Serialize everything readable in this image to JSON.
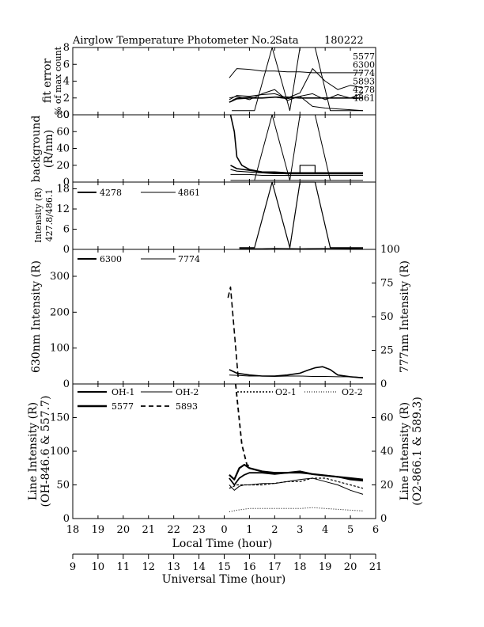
{
  "header": {
    "title": "Airglow Temperature Photometer No.2",
    "site": "Sata",
    "date": "180222"
  },
  "chart_data": [
    {
      "type": "line",
      "panel": "fit-error",
      "ylabel_1": "fit error",
      "ylabel_2": "% of max count",
      "ylim": [
        0,
        8
      ],
      "yticks": [
        "0",
        "2",
        "4",
        "6",
        "8"
      ],
      "labels": [
        "5577",
        "6300",
        "7774",
        "5893",
        "4278",
        "4861"
      ],
      "series": [
        {
          "name": "5577",
          "x": [
            0.2,
            0.5,
            1,
            1.5,
            2,
            2.5,
            3,
            3.5,
            4,
            4.5,
            5,
            5.5
          ],
          "y": [
            4.4,
            5.5,
            5.4,
            5.2,
            5.2,
            5.1,
            5.1,
            5.0,
            5.0,
            5.0,
            5.0,
            5.0
          ]
        },
        {
          "name": "6300",
          "x": [
            0.2,
            0.5,
            1,
            1.5,
            2,
            2.5,
            3,
            3.5,
            4,
            4.5,
            5,
            5.5
          ],
          "y": [
            1.5,
            1.9,
            2.0,
            2.0,
            2.1,
            2.1,
            2.0,
            2.0,
            2.0,
            2.0,
            2.0,
            2.0
          ]
        },
        {
          "name": "7774",
          "x": [
            0.2,
            0.5,
            1,
            1.5,
            2,
            2.5,
            3,
            3.5,
            4,
            4.5,
            5,
            5.5
          ],
          "y": [
            2.0,
            2.2,
            1.8,
            2.5,
            3.0,
            1.7,
            2.2,
            2.5,
            1.8,
            2.4,
            2.0,
            2.6
          ]
        },
        {
          "name": "5893",
          "x": [
            0.2,
            0.5,
            1,
            1.5,
            2,
            2.5,
            3,
            3.5,
            4,
            4.5,
            5,
            5.5
          ],
          "y": [
            1.8,
            2.3,
            2.2,
            2.4,
            2.5,
            2.0,
            2.6,
            5.5,
            4.0,
            3.0,
            3.5,
            3.2
          ]
        },
        {
          "name": "4278",
          "x": [
            0.3,
            1.2,
            1.9,
            2.6,
            3.0,
            3.6,
            4.2,
            5.5
          ],
          "y": [
            0.5,
            0.5,
            8,
            0.5,
            8,
            8,
            0.5,
            0.5
          ]
        },
        {
          "name": "4861",
          "x": [
            0.3,
            0.5,
            1,
            1.5,
            2,
            2.5,
            3,
            3.5,
            4,
            4.5,
            5,
            5.5
          ],
          "y": [
            1.7,
            2.0,
            2.1,
            2.0,
            2.1,
            1.9,
            2.2,
            1.0,
            0.8,
            0.7,
            0.6,
            0.5
          ]
        }
      ]
    },
    {
      "type": "line",
      "panel": "background",
      "ylabel_1": "background",
      "ylabel_2": "(R/nm)",
      "ylim": [
        0,
        80
      ],
      "yticks": [
        "0",
        "20",
        "40",
        "60",
        "80"
      ],
      "series": [
        {
          "x": [
            0.25,
            0.4,
            0.5,
            0.7,
            1,
            1.5,
            2,
            2.5,
            3,
            3.5,
            4,
            4.5,
            5,
            5.5
          ],
          "y": [
            80,
            60,
            30,
            20,
            15,
            12,
            11,
            10,
            10,
            10,
            10,
            10,
            10,
            10
          ]
        },
        {
          "x": [
            0.25,
            0.5,
            1,
            1.5,
            2,
            2.5,
            3,
            3.5,
            4,
            4.5,
            5,
            5.5
          ],
          "y": [
            20,
            16,
            14,
            12,
            12,
            11,
            11,
            11,
            11,
            11,
            11,
            11
          ]
        },
        {
          "x": [
            0.25,
            0.5,
            1,
            1.5,
            2,
            2.5,
            3,
            3.5,
            4,
            4.5,
            5,
            5.5
          ],
          "y": [
            15,
            13,
            12,
            11,
            10,
            10,
            10,
            10,
            10,
            10,
            10,
            10
          ]
        },
        {
          "x": [
            0.25,
            0.5,
            1,
            1.5,
            2,
            2.5,
            3,
            3.5,
            4,
            4.5,
            5,
            5.5
          ],
          "y": [
            9,
            9,
            9,
            8,
            8,
            8,
            8,
            8,
            8,
            8,
            8,
            8
          ]
        },
        {
          "x": [
            0.25,
            0.5,
            1,
            1.5,
            2,
            2.5,
            3,
            3.5,
            4,
            4.5,
            5,
            5.5
          ],
          "y": [
            2,
            2,
            2,
            2,
            2,
            2,
            2,
            2,
            2,
            2,
            2,
            2
          ]
        },
        {
          "x": [
            1.2,
            1.9,
            2.6,
            3.0,
            3.6,
            4.2
          ],
          "y": [
            2,
            80,
            2,
            80,
            80,
            2
          ]
        },
        {
          "x": [
            2.7,
            3.0,
            3.0,
            3.6,
            3.6,
            4.0
          ],
          "y": [
            10,
            10,
            20,
            20,
            10,
            10
          ]
        }
      ]
    },
    {
      "type": "line",
      "panel": "intensity-427-486",
      "ylabel_1": "Intensity (R)",
      "ylabel_2": "427.8/486.1",
      "ylim": [
        0,
        20
      ],
      "yticks": [
        "0",
        "6",
        "12",
        "18"
      ],
      "series": [
        {
          "name": "4278",
          "x": [
            0.6,
            1.2,
            1.9,
            2.6,
            3.0,
            3.6,
            4.2,
            5.5
          ],
          "y": [
            0.5,
            0.5,
            20,
            0.5,
            20,
            20,
            0.5,
            0.5
          ]
        },
        {
          "name": "4861",
          "x": [
            0.6,
            1.5,
            2.0,
            3.0,
            4.0,
            5.5
          ],
          "y": [
            0.2,
            0.2,
            0.3,
            0.2,
            0.3,
            0.2
          ]
        }
      ]
    },
    {
      "type": "line",
      "panel": "intensity-630-777",
      "ylabel_left": "630nm Intensity (R)",
      "ylabel_right": "777nm Intensity (R)",
      "ylim_left": [
        0,
        375
      ],
      "ylim_right": [
        0,
        100
      ],
      "yticks_left": [
        "0",
        "100",
        "200",
        "300"
      ],
      "yticks_right": [
        "0",
        "25",
        "50",
        "75",
        "100"
      ],
      "series": [
        {
          "name": "6300",
          "axis": "left",
          "x": [
            0.2,
            0.5,
            1,
            1.5,
            2,
            2.5,
            3,
            3.3,
            3.6,
            3.9,
            4.2,
            4.5,
            5,
            5.5
          ],
          "y": [
            40,
            30,
            25,
            22,
            22,
            25,
            30,
            38,
            45,
            48,
            40,
            25,
            20,
            17
          ]
        },
        {
          "name": "7774",
          "axis": "left",
          "x": [
            0.2,
            0.5,
            1,
            1.5,
            2,
            2.5,
            3,
            3.5,
            4,
            4.5,
            5,
            5.5
          ],
          "y": [
            25,
            24,
            22,
            22,
            21,
            22,
            22,
            21,
            21,
            20,
            20,
            18
          ]
        },
        {
          "name": "dashed",
          "axis": "left",
          "x": [
            0.15,
            0.25,
            0.55
          ],
          "y": [
            240,
            270,
            20
          ]
        }
      ]
    },
    {
      "type": "line",
      "panel": "line-intensity",
      "ylabel_left_1": "Line Intensity (R)",
      "ylabel_left_2": "(OH-846.6 & 557.7)",
      "ylabel_right_1": "Line Intensity (R)",
      "ylabel_right_2": "(O2-866.1 & 589.3)",
      "ylim_left": [
        0,
        200
      ],
      "ylim_right": [
        0,
        80
      ],
      "yticks_left": [
        "0",
        "50",
        "100",
        "150"
      ],
      "yticks_right": [
        "0",
        "20",
        "40",
        "60"
      ],
      "series": [
        {
          "name": "OH-1",
          "axis": "left",
          "x": [
            0.2,
            0.4,
            0.6,
            0.8,
            1,
            1.5,
            2,
            2.5,
            3,
            3.5,
            4,
            4.5,
            5,
            5.5
          ],
          "y": [
            60,
            50,
            60,
            65,
            68,
            68,
            66,
            68,
            68,
            66,
            64,
            62,
            58,
            56
          ]
        },
        {
          "name": "OH-2",
          "axis": "left",
          "x": [
            0.2,
            0.4,
            0.6,
            0.8,
            1,
            1.5,
            2,
            2.5,
            3,
            3.5,
            4,
            4.5,
            5,
            5.5
          ],
          "y": [
            50,
            42,
            48,
            50,
            50,
            52,
            52,
            55,
            58,
            60,
            55,
            50,
            42,
            36
          ]
        },
        {
          "name": "O2-1",
          "axis": "right",
          "x": [
            0.2,
            0.5,
            1,
            1.5,
            2,
            2.5,
            3,
            3.5,
            4,
            4.5,
            5,
            5.5
          ],
          "y": [
            4,
            5,
            6,
            6,
            6,
            6,
            6,
            6.5,
            6,
            5.5,
            5,
            4.5
          ]
        },
        {
          "name": "O2-2",
          "axis": "right",
          "x": [
            0.2,
            0.5,
            1,
            1.5,
            2,
            2.5,
            3,
            3.5,
            4,
            4.5,
            5,
            5.5
          ],
          "y": [
            18,
            20,
            20,
            20,
            21,
            22,
            22,
            24,
            24,
            22,
            20,
            18
          ]
        },
        {
          "name": "5577",
          "axis": "left",
          "x": [
            0.2,
            0.4,
            0.6,
            0.8,
            1,
            1.5,
            2,
            2.5,
            3,
            3.5,
            4,
            4.5,
            5,
            5.5
          ],
          "y": [
            65,
            58,
            75,
            80,
            75,
            70,
            68,
            68,
            70,
            66,
            64,
            62,
            60,
            58
          ]
        },
        {
          "name": "5893",
          "axis": "left",
          "x": [
            0.45,
            0.7,
            0.9,
            1.0
          ],
          "y": [
            200,
            110,
            80,
            78
          ]
        }
      ]
    },
    {
      "type": "axis",
      "panel": "time-axes",
      "local_time": {
        "label": "Local Time (hour)",
        "ticks": [
          "18",
          "19",
          "20",
          "21",
          "22",
          "23",
          "0",
          "1",
          "2",
          "3",
          "4",
          "5",
          "6"
        ]
      },
      "universal_time": {
        "label": "Universal Time (hour)",
        "ticks": [
          "9",
          "10",
          "11",
          "12",
          "13",
          "14",
          "15",
          "16",
          "17",
          "18",
          "19",
          "20",
          "21"
        ]
      }
    }
  ]
}
